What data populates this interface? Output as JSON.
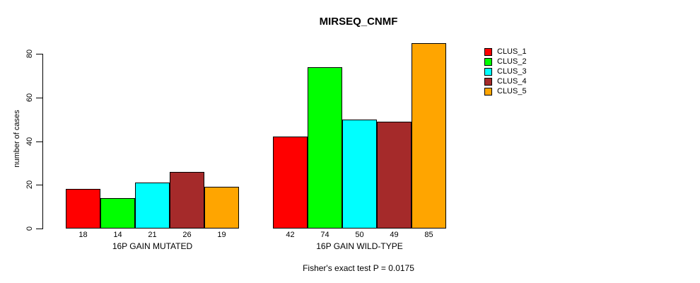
{
  "title": "MIRSEQ_CNMF",
  "footer": "Fisher's exact test P = 0.0175",
  "chart_data": {
    "type": "bar",
    "title": "MIRSEQ_CNMF",
    "xlabel": "",
    "ylabel": "number of cases",
    "ylim": [
      0,
      80
    ],
    "yticks": [
      0,
      20,
      40,
      60,
      80
    ],
    "grid": false,
    "legend_position": "top-right",
    "bar_value_labels_shown": true,
    "categories": [
      "16P GAIN MUTATED",
      "16P GAIN WILD-TYPE"
    ],
    "series": [
      {
        "name": "CLUS_1",
        "color": "#ff0000",
        "values": [
          18,
          42
        ]
      },
      {
        "name": "CLUS_2",
        "color": "#00ff00",
        "values": [
          14,
          74
        ]
      },
      {
        "name": "CLUS_3",
        "color": "#00ffff",
        "values": [
          21,
          50
        ]
      },
      {
        "name": "CLUS_4",
        "color": "#a52a2a",
        "values": [
          26,
          49
        ]
      },
      {
        "name": "CLUS_5",
        "color": "#ffa500",
        "values": [
          19,
          85
        ]
      }
    ],
    "annotation": "Fisher's exact test P = 0.0175",
    "axis_color": "#000000",
    "bar_border_color": "#000000",
    "background_color": "#ffffff"
  }
}
